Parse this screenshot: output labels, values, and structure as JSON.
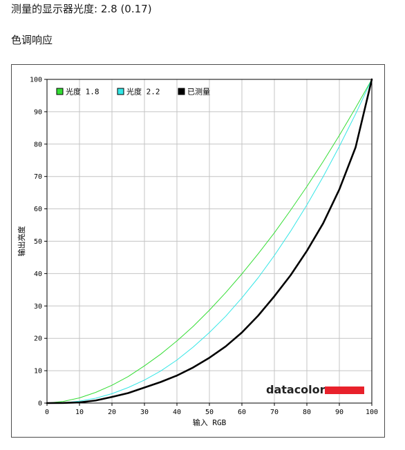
{
  "header": {
    "title": "测量的显示器光度: 2.8 (0.17)",
    "section": "色调响应"
  },
  "brand": {
    "logo_text": "datacolor",
    "bar_color": "#e8212b"
  },
  "chart_data": {
    "type": "line",
    "title": "",
    "xlabel": "输入 RGB",
    "ylabel": "输出亮度",
    "xlim": [
      0,
      100
    ],
    "ylim": [
      0,
      100
    ],
    "xticks": [
      0,
      10,
      20,
      30,
      40,
      50,
      60,
      70,
      80,
      90,
      100
    ],
    "yticks": [
      0,
      10,
      20,
      30,
      40,
      50,
      60,
      70,
      80,
      90,
      100
    ],
    "grid": true,
    "legend_position": "top-left",
    "x": [
      0,
      5,
      10,
      15,
      20,
      25,
      30,
      35,
      40,
      45,
      50,
      55,
      60,
      65,
      70,
      75,
      80,
      85,
      90,
      95,
      100
    ],
    "series": [
      {
        "name": "光度 1.8",
        "color": "#33dd33",
        "values": [
          0,
          0.5,
          1.6,
          3.3,
          5.5,
          8.2,
          11.5,
          15.1,
          19.2,
          23.7,
          28.7,
          34.1,
          39.9,
          46.1,
          52.6,
          59.6,
          66.9,
          74.6,
          82.7,
          91.2,
          100
        ]
      },
      {
        "name": "光度 2.2",
        "color": "#33e6e6",
        "values": [
          0,
          0.1,
          0.6,
          1.5,
          2.9,
          4.8,
          7.1,
          9.9,
          13.3,
          17.3,
          21.8,
          26.8,
          32.5,
          38.7,
          45.6,
          53.1,
          61.2,
          69.9,
          79.3,
          89.3,
          100
        ]
      },
      {
        "name": "已测量",
        "color": "#000000",
        "values": [
          0,
          0.03,
          0.2,
          0.8,
          1.9,
          3.1,
          4.8,
          6.5,
          8.5,
          11.0,
          14.0,
          17.5,
          21.8,
          27.0,
          33.0,
          39.5,
          47.0,
          55.5,
          66.0,
          79.0,
          100
        ]
      }
    ]
  }
}
